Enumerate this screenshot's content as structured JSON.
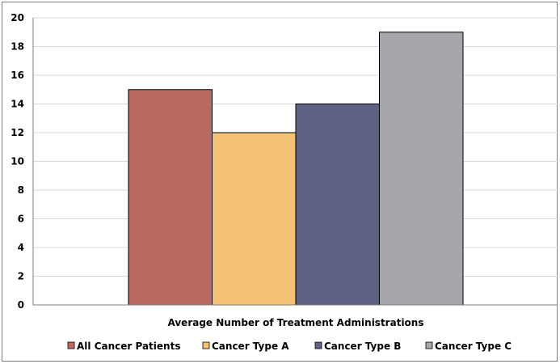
{
  "chart_data": {
    "type": "bar",
    "categories": [
      "Average Number of Treatment Administrations"
    ],
    "series": [
      {
        "name": "All Cancer Patients",
        "values": [
          15
        ],
        "color": "#b96a63"
      },
      {
        "name": "Cancer Type A",
        "values": [
          12
        ],
        "color": "#f4c272"
      },
      {
        "name": "Cancer Type B",
        "values": [
          14
        ],
        "color": "#5f6282"
      },
      {
        "name": "Cancer Type C",
        "values": [
          19
        ],
        "color": "#a6a7aa"
      }
    ],
    "y_ticks": [
      "0",
      "2",
      "4",
      "6",
      "8",
      "10",
      "12",
      "14",
      "16",
      "18",
      "20"
    ],
    "ylim": [
      0,
      20
    ],
    "grid": true,
    "legend_position": "bottom"
  }
}
